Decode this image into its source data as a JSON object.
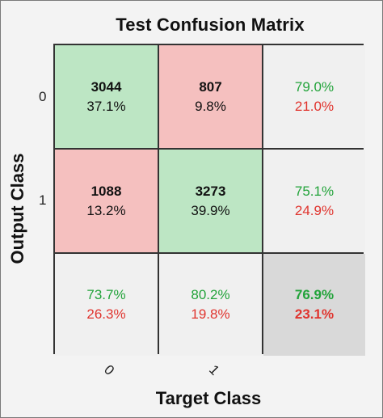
{
  "chart_data": {
    "type": "heatmap",
    "title": "Test Confusion Matrix",
    "xlabel": "Target Class",
    "ylabel": "Output Class",
    "x_tick_labels": [
      "0",
      "1"
    ],
    "y_tick_labels": [
      "0",
      "1"
    ],
    "cells": [
      [
        {
          "count": "3044",
          "percent": "37.1%",
          "kind": "correct"
        },
        {
          "count": "807",
          "percent": "9.8%",
          "kind": "incorrect"
        }
      ],
      [
        {
          "count": "1088",
          "percent": "13.2%",
          "kind": "incorrect"
        },
        {
          "count": "3273",
          "percent": "39.9%",
          "kind": "correct"
        }
      ]
    ],
    "row_summary": [
      {
        "correct": "79.0%",
        "incorrect": "21.0%"
      },
      {
        "correct": "75.1%",
        "incorrect": "24.9%"
      }
    ],
    "column_summary": [
      {
        "correct": "73.7%",
        "incorrect": "26.3%"
      },
      {
        "correct": "80.2%",
        "incorrect": "19.8%"
      }
    ],
    "overall": {
      "correct": "76.9%",
      "incorrect": "23.1%"
    },
    "colors": {
      "correct_cell": "#bde6c4",
      "incorrect_cell": "#f5c0bf",
      "summary_cell": "#f0f0f0",
      "overall_cell": "#d9d9d9",
      "correct_text": "#22a33a",
      "incorrect_text": "#e0342e"
    }
  }
}
